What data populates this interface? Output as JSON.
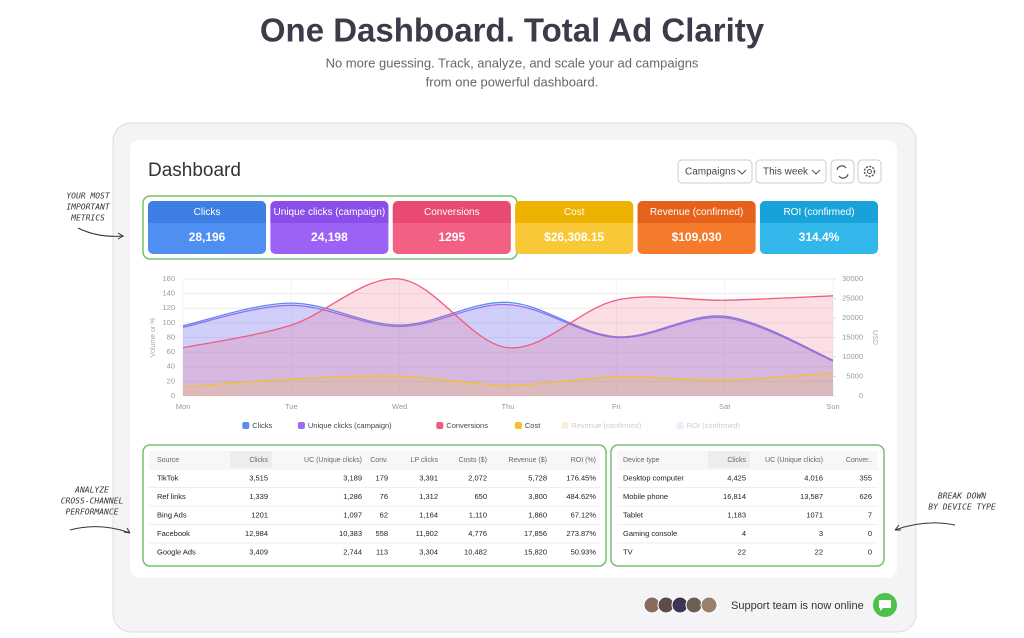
{
  "header": {
    "title": "One Dashboard. Total Ad Clarity",
    "subtitle_lines": [
      "No more guessing. Track, analyze, and scale your ad campaigns",
      "from one powerful dashboard."
    ]
  },
  "dashboard": {
    "title": "Dashboard",
    "filters": [
      "Campaigns",
      "This week"
    ]
  },
  "metrics": [
    {
      "label": "Clicks",
      "value": "28,196"
    },
    {
      "label": "Unique clicks (campaign)",
      "value": "24,198"
    },
    {
      "label": "Conversions",
      "value": "1295"
    },
    {
      "label": "Cost",
      "value": "$26,308.15"
    },
    {
      "label": "Revenue (confirmed)",
      "value": "$109,030"
    },
    {
      "label": "ROI (confirmed)",
      "value": "314.4%"
    }
  ],
  "annotations": [
    [
      "YOUR MOST",
      "IMPORTANT",
      "METRICS"
    ],
    [
      "ANALYZE",
      "CROSS-CHANNEL",
      "PERFORMANCE"
    ],
    [
      "BREAK DOWN",
      "BY DEVICE TYPE"
    ]
  ],
  "chart": {
    "type": "area",
    "categories": [
      "Mon",
      "Tue",
      "Wed",
      "Thu",
      "Fri",
      "Sat",
      "Sun"
    ],
    "ylabel": "Volume or %",
    "y2label": "USD",
    "ylim": [
      0,
      160
    ],
    "yticks": [
      0,
      20,
      40,
      60,
      80,
      100,
      120,
      140,
      160
    ],
    "y2lim": [
      0,
      30000
    ],
    "y2ticks": [
      0,
      5000,
      10000,
      15000,
      20000,
      25000,
      30000
    ],
    "series": [
      {
        "name": "Clicks",
        "color": "#5b8def",
        "values": [
          96,
          127,
          97,
          128,
          81,
          109,
          49
        ]
      },
      {
        "name": "Unique clicks (campaign)",
        "color": "#9b6cf0",
        "values": [
          94,
          124,
          95,
          125,
          80,
          107,
          48
        ]
      },
      {
        "name": "Conversions",
        "color": "#ef5b7e",
        "values": [
          66,
          97,
          160,
          66,
          131,
          131,
          137
        ]
      },
      {
        "name": "Cost",
        "color": "#f2c12e",
        "axis": "y2",
        "values": [
          2300,
          4360,
          5100,
          2800,
          4900,
          4100,
          5900
        ]
      },
      {
        "name": "Revenue (confirmed)",
        "color": "#f7d9b8",
        "hidden": true
      },
      {
        "name": "ROI (confirmed)",
        "color": "#c9dcf7",
        "hidden": true
      }
    ]
  },
  "tables": [
    {
      "columns": [
        "Source",
        "Clicks",
        "UC (Unique clicks)",
        "Conv.",
        "LP clicks",
        "Costs ($)",
        "Revenue ($)",
        "ROI (%)"
      ],
      "rows": [
        [
          "TikTok",
          "3,515",
          "3,189",
          "179",
          "3,391",
          "2,072",
          "5,728",
          "176.45%"
        ],
        [
          "Ref links",
          "1,339",
          "1,286",
          "76",
          "1,312",
          "650",
          "3,800",
          "484.62%"
        ],
        [
          "Bing Ads",
          "1201",
          "1,097",
          "62",
          "1,164",
          "1,110",
          "1,860",
          "67.12%"
        ],
        [
          "Facebook",
          "12,984",
          "10,383",
          "558",
          "11,902",
          "4,776",
          "17,856",
          "273.87%"
        ],
        [
          "Google Ads",
          "3,409",
          "2,744",
          "113",
          "3,304",
          "10,482",
          "15,820",
          "50.93%"
        ]
      ]
    },
    {
      "columns": [
        "Device type",
        "Clicks",
        "UC (Unique clicks)",
        "Conver.."
      ],
      "rows": [
        [
          "Desktop computer",
          "4,425",
          "4,016",
          "355"
        ],
        [
          "Mobile phone",
          "16,814",
          "13,587",
          "626"
        ],
        [
          "Tablet",
          "1,183",
          "1071",
          "7"
        ],
        [
          "Gaming console",
          "4",
          "3",
          "0"
        ],
        [
          "TV",
          "22",
          "22",
          "0"
        ]
      ]
    }
  ],
  "support": {
    "text": "Support team is now online"
  }
}
